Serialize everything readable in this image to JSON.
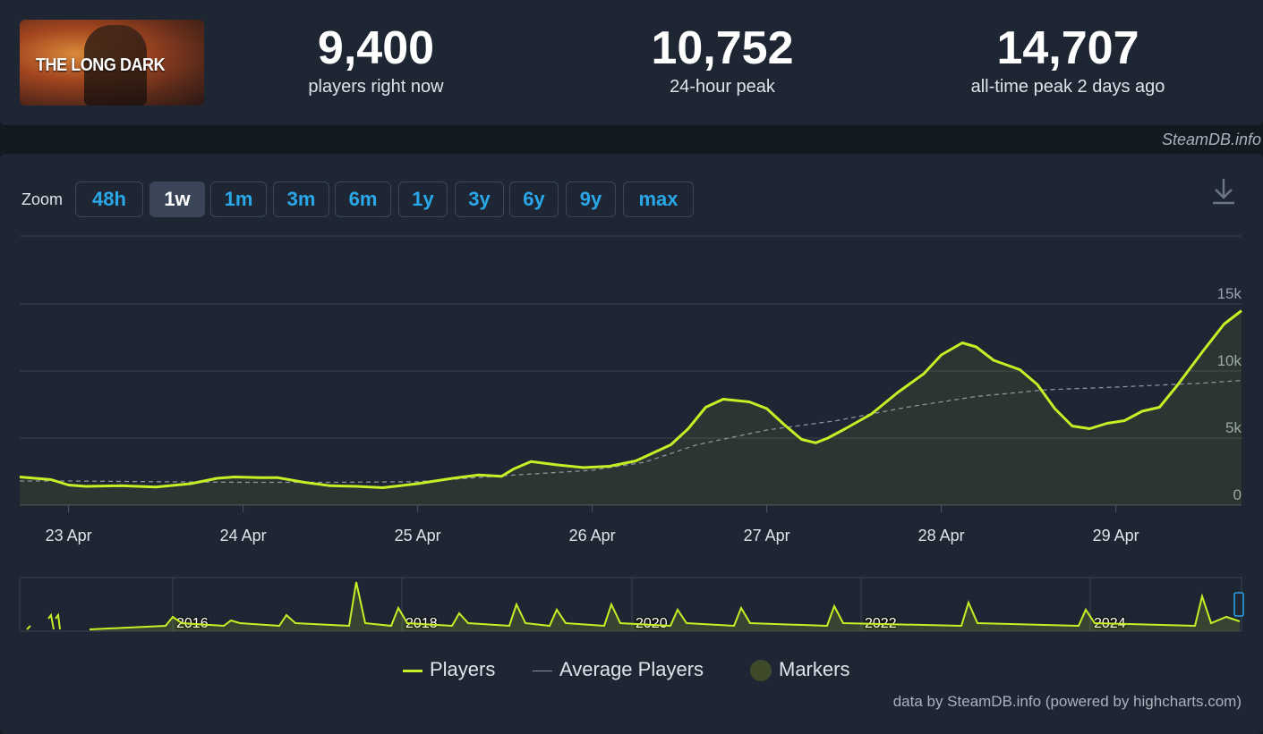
{
  "header": {
    "logo_text": "THE LONG DARK",
    "stats": [
      {
        "value": "9,400",
        "label": "players right now"
      },
      {
        "value": "10,752",
        "label": "24-hour peak"
      },
      {
        "value": "14,707",
        "label": "all-time peak 2 days ago"
      }
    ],
    "credit": "SteamDB.info"
  },
  "zoom": {
    "label": "Zoom",
    "buttons": [
      "48h",
      "1w",
      "1m",
      "3m",
      "6m",
      "1y",
      "3y",
      "6y",
      "9y",
      "max"
    ],
    "active": "1w"
  },
  "colors": {
    "players": "#c6f026",
    "average": "#8a929c",
    "markers": "#3f4a2a",
    "accent": "#29a7e9"
  },
  "chart_data": {
    "type": "line",
    "x_tick_labels": [
      "23 Apr",
      "24 Apr",
      "25 Apr",
      "26 Apr",
      "27 Apr",
      "28 Apr",
      "29 Apr"
    ],
    "y_tick_labels": [
      "0",
      "5k",
      "10k",
      "15k"
    ],
    "ylim": [
      0,
      15000
    ],
    "x_unit": "days since 22 Apr 00:00",
    "xlim": [
      0.72,
      7.72
    ],
    "series": [
      {
        "name": "Players",
        "points": [
          [
            0.72,
            2100
          ],
          [
            0.9,
            1900
          ],
          [
            1.0,
            1500
          ],
          [
            1.1,
            1400
          ],
          [
            1.3,
            1450
          ],
          [
            1.5,
            1350
          ],
          [
            1.7,
            1600
          ],
          [
            1.85,
            2000
          ],
          [
            1.95,
            2100
          ],
          [
            2.1,
            2050
          ],
          [
            2.2,
            2050
          ],
          [
            2.35,
            1700
          ],
          [
            2.5,
            1450
          ],
          [
            2.65,
            1400
          ],
          [
            2.8,
            1300
          ],
          [
            3.0,
            1600
          ],
          [
            3.2,
            2000
          ],
          [
            3.35,
            2250
          ],
          [
            3.48,
            2150
          ],
          [
            3.55,
            2700
          ],
          [
            3.65,
            3250
          ],
          [
            3.8,
            3000
          ],
          [
            3.95,
            2800
          ],
          [
            4.1,
            2900
          ],
          [
            4.25,
            3300
          ],
          [
            4.45,
            4500
          ],
          [
            4.55,
            5700
          ],
          [
            4.65,
            7300
          ],
          [
            4.75,
            7900
          ],
          [
            4.9,
            7700
          ],
          [
            5.0,
            7200
          ],
          [
            5.1,
            6000
          ],
          [
            5.2,
            4900
          ],
          [
            5.28,
            4650
          ],
          [
            5.35,
            5000
          ],
          [
            5.45,
            5700
          ],
          [
            5.6,
            6800
          ],
          [
            5.75,
            8400
          ],
          [
            5.9,
            9800
          ],
          [
            6.0,
            11200
          ],
          [
            6.12,
            12100
          ],
          [
            6.2,
            11800
          ],
          [
            6.3,
            10800
          ],
          [
            6.45,
            10100
          ],
          [
            6.55,
            9000
          ],
          [
            6.65,
            7200
          ],
          [
            6.75,
            5900
          ],
          [
            6.85,
            5700
          ],
          [
            6.95,
            6100
          ],
          [
            7.05,
            6300
          ],
          [
            7.15,
            7000
          ],
          [
            7.25,
            7300
          ],
          [
            7.35,
            8900
          ],
          [
            7.5,
            11500
          ],
          [
            7.62,
            13500
          ],
          [
            7.72,
            14500
          ]
        ]
      },
      {
        "name": "Average Players",
        "points": [
          [
            0.72,
            1800
          ],
          [
            1.0,
            1800
          ],
          [
            1.5,
            1750
          ],
          [
            2.0,
            1700
          ],
          [
            2.5,
            1700
          ],
          [
            3.0,
            1750
          ],
          [
            3.5,
            2200
          ],
          [
            4.0,
            2600
          ],
          [
            4.3,
            3200
          ],
          [
            4.6,
            4500
          ],
          [
            5.0,
            5600
          ],
          [
            5.4,
            6300
          ],
          [
            5.8,
            7300
          ],
          [
            6.2,
            8100
          ],
          [
            6.6,
            8600
          ],
          [
            7.0,
            8800
          ],
          [
            7.5,
            9100
          ],
          [
            7.72,
            9300
          ]
        ]
      }
    ],
    "navigator": {
      "x_tick_labels": [
        "2016",
        "2018",
        "2020",
        "2022",
        "2024"
      ]
    },
    "legend": [
      "Players",
      "Average Players",
      "Markers"
    ]
  },
  "footer": {
    "credit": "data by SteamDB.info (powered by highcharts.com)"
  }
}
